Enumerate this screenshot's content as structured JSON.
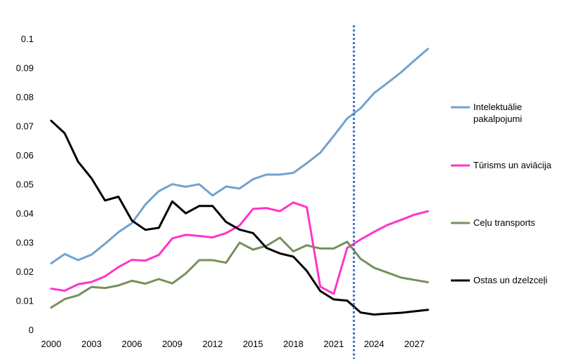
{
  "chart_data": {
    "type": "line",
    "title": "",
    "xlabel": "",
    "ylabel": "",
    "xlim": [
      2000,
      2028
    ],
    "ylim": [
      0,
      0.1
    ],
    "x_ticks": [
      2000,
      2003,
      2006,
      2009,
      2012,
      2015,
      2018,
      2021,
      2024,
      2027
    ],
    "x_tick_labels": [
      "2000",
      "2003",
      "2006",
      "2009",
      "2012",
      "2015",
      "2018",
      "2021",
      "2024",
      "2027"
    ],
    "y_ticks": [
      0,
      0.01,
      0.02,
      0.03,
      0.04,
      0.05,
      0.06,
      0.07,
      0.08,
      0.09,
      0.1
    ],
    "y_tick_labels": [
      "0",
      "0.01",
      "0.02",
      "0.03",
      "0.04",
      "0.05",
      "0.06",
      "0.07",
      "0.08",
      "0.09",
      "0.1"
    ],
    "grid": false,
    "legend_position": "right",
    "forecast_divider": {
      "x": 2022.5,
      "color": "#4472c4",
      "style": "dotted"
    },
    "x": [
      2000,
      2001,
      2002,
      2003,
      2004,
      2005,
      2006,
      2007,
      2008,
      2009,
      2010,
      2011,
      2012,
      2013,
      2014,
      2015,
      2016,
      2017,
      2018,
      2019,
      2020,
      2021,
      2022,
      2023,
      2024,
      2025,
      2026,
      2027,
      2028
    ],
    "series": [
      {
        "name": "Intelektuālie pakalpojumi",
        "legend_lines": [
          "Intelektuālie",
          "pakalpojumi"
        ],
        "color": "#71a2cf",
        "values": [
          0.023,
          0.0262,
          0.0241,
          0.026,
          0.0297,
          0.0337,
          0.0368,
          0.0432,
          0.0478,
          0.0502,
          0.0493,
          0.0502,
          0.0463,
          0.0494,
          0.0487,
          0.0519,
          0.0535,
          0.0535,
          0.0541,
          0.0574,
          0.061,
          0.0668,
          0.0728,
          0.0763,
          0.0815,
          0.085,
          0.0886,
          0.0927,
          0.0967
        ]
      },
      {
        "name": "Tūrisms un aviācija",
        "legend_lines": [
          "Tūrisms un aviācija"
        ],
        "color": "#ff33cc",
        "values": [
          0.0143,
          0.0136,
          0.0158,
          0.0166,
          0.0185,
          0.0217,
          0.0242,
          0.0239,
          0.0259,
          0.0316,
          0.0328,
          0.0324,
          0.0319,
          0.0334,
          0.036,
          0.0417,
          0.042,
          0.0409,
          0.0439,
          0.0423,
          0.015,
          0.0125,
          0.0283,
          0.0312,
          0.0338,
          0.0362,
          0.0379,
          0.0397,
          0.0409
        ]
      },
      {
        "name": "Ceļu transports",
        "legend_lines": [
          "Ceļu transports"
        ],
        "color": "#76905a",
        "values": [
          0.0078,
          0.0107,
          0.012,
          0.0149,
          0.0145,
          0.0154,
          0.017,
          0.016,
          0.0176,
          0.0161,
          0.0195,
          0.0241,
          0.0241,
          0.0232,
          0.0301,
          0.0277,
          0.029,
          0.0318,
          0.0271,
          0.0292,
          0.0281,
          0.0281,
          0.0304,
          0.0245,
          0.0215,
          0.0198,
          0.0181,
          0.0173,
          0.0165
        ]
      },
      {
        "name": "Ostas un dzelzceļi",
        "legend_lines": [
          "Ostas un dzelzceļi"
        ],
        "color": "#000000",
        "values": [
          0.072,
          0.0677,
          0.0579,
          0.0522,
          0.0446,
          0.0459,
          0.0377,
          0.0345,
          0.0352,
          0.0443,
          0.0402,
          0.0427,
          0.0427,
          0.0372,
          0.0346,
          0.0334,
          0.0283,
          0.0264,
          0.0253,
          0.0204,
          0.0135,
          0.0106,
          0.0102,
          0.0061,
          0.0054,
          0.0057,
          0.006,
          0.0065,
          0.007
        ]
      }
    ]
  }
}
